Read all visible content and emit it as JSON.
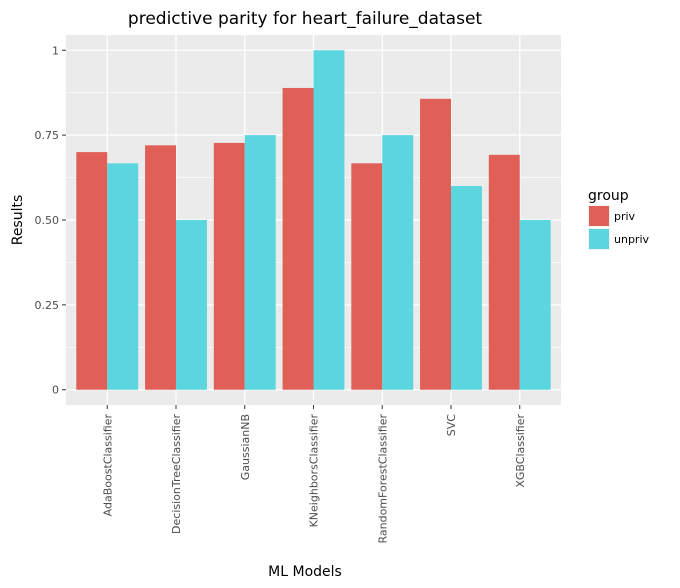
{
  "chart_data": {
    "type": "bar",
    "title": "predictive parity for heart_failure_dataset",
    "xlabel": "ML Models",
    "ylabel": "Results",
    "ylim": [
      -0.045,
      1.045
    ],
    "yticks": [
      0,
      0.25,
      0.5,
      0.75,
      1
    ],
    "ytick_labels": [
      "0",
      "0.25",
      "0.50",
      "0.75",
      "1"
    ],
    "categories": [
      "AdaBoostClassifier",
      "DecisionTreeClassifier",
      "GaussianNB",
      "KNeighborsClassifier",
      "RandomForestClassifier",
      "SVC",
      "XGBClassifier"
    ],
    "series": [
      {
        "name": "priv",
        "color": "#e05f57",
        "values": [
          0.7,
          0.72,
          0.727,
          0.889,
          0.667,
          0.857,
          0.692
        ]
      },
      {
        "name": "unpriv",
        "color": "#5bd5de",
        "values": [
          0.667,
          0.5,
          0.75,
          1.0,
          0.75,
          0.6,
          0.5
        ]
      }
    ],
    "grid": true,
    "legend": {
      "title": "group",
      "position": "right"
    }
  }
}
